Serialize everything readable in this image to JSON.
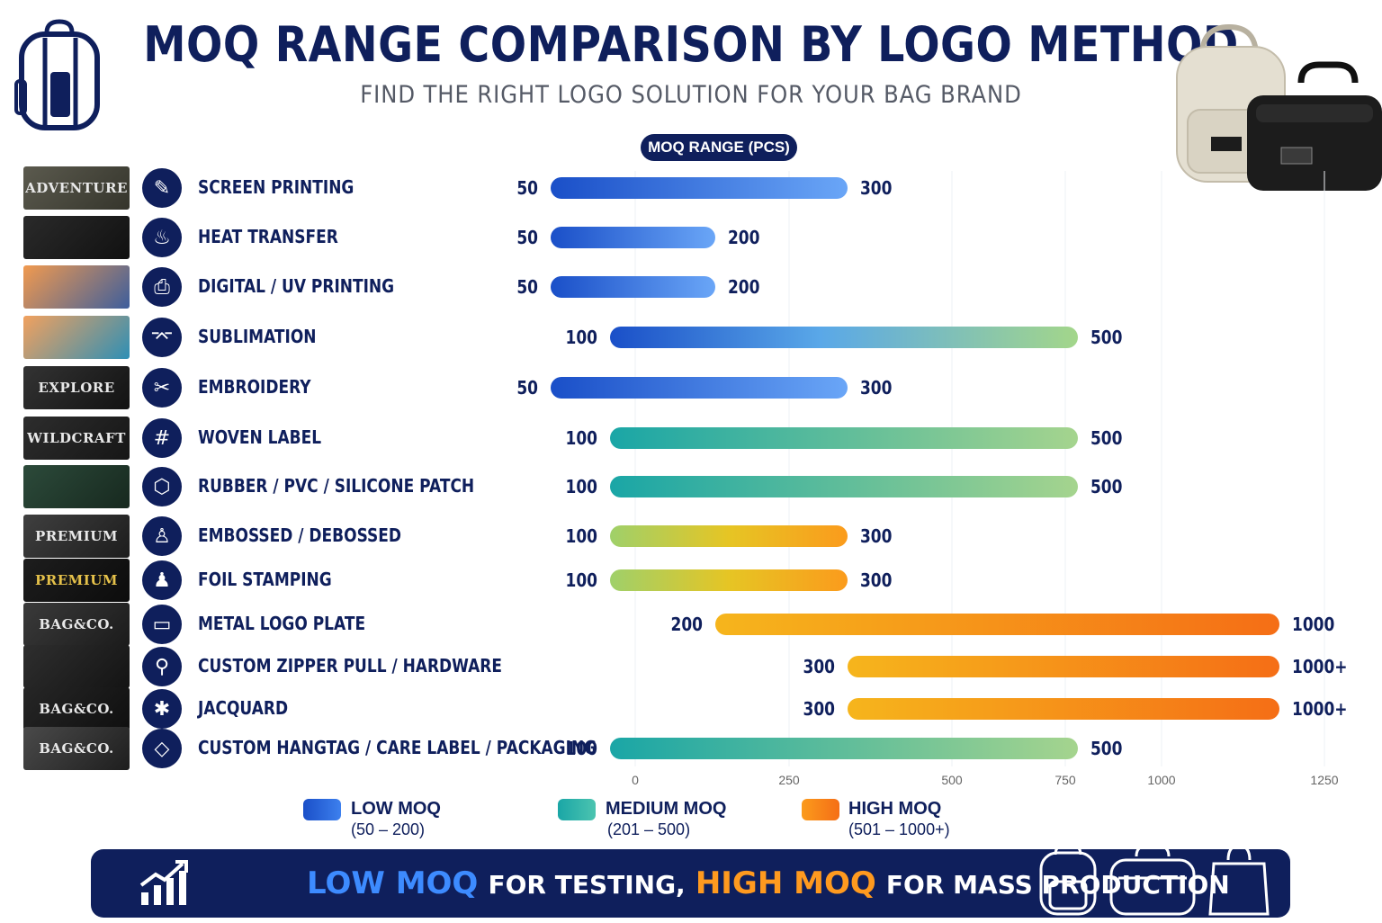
{
  "header": {
    "title": "MOQ RANGE COMPARISON BY LOGO METHOD",
    "subtitle": "FIND THE RIGHT LOGO SOLUTION FOR YOUR BAG BRAND"
  },
  "chart_data": {
    "type": "bar",
    "subtype": "floating-range-horizontal",
    "axis_title": "MOQ RANGE (PCS)",
    "xlim": [
      0,
      1250
    ],
    "x_ticks": [
      0,
      250,
      500,
      750,
      1000,
      1250
    ],
    "grid": true,
    "categories": [
      "SCREEN PRINTING",
      "HEAT TRANSFER",
      "DIGITAL / UV PRINTING",
      "SUBLIMATION",
      "EMBROIDERY",
      "WOVEN LABEL",
      "RUBBER / PVC / SILICONE PATCH",
      "EMBOSSED / DEBOSSED",
      "FOIL STAMPING",
      "METAL LOGO PLATE",
      "CUSTOM ZIPPER PULL / HARDWARE",
      "JACQUARD",
      "CUSTOM HANGTAG / CARE LABEL / PACKAGING"
    ],
    "ranges": [
      {
        "min": 50,
        "max": 300,
        "min_label": "50",
        "max_label": "300",
        "style": "blue"
      },
      {
        "min": 50,
        "max": 200,
        "min_label": "50",
        "max_label": "200",
        "style": "blue"
      },
      {
        "min": 50,
        "max": 200,
        "min_label": "50",
        "max_label": "200",
        "style": "blue"
      },
      {
        "min": 100,
        "max": 500,
        "min_label": "100",
        "max_label": "500",
        "style": "blue-green"
      },
      {
        "min": 50,
        "max": 300,
        "min_label": "50",
        "max_label": "300",
        "style": "blue"
      },
      {
        "min": 100,
        "max": 500,
        "min_label": "100",
        "max_label": "500",
        "style": "teal"
      },
      {
        "min": 100,
        "max": 500,
        "min_label": "100",
        "max_label": "500",
        "style": "teal"
      },
      {
        "min": 100,
        "max": 300,
        "min_label": "100",
        "max_label": "300",
        "style": "green-orange"
      },
      {
        "min": 100,
        "max": 300,
        "min_label": "100",
        "max_label": "300",
        "style": "green-orange"
      },
      {
        "min": 200,
        "max": 1000,
        "min_label": "200",
        "max_label": "1000",
        "style": "orange"
      },
      {
        "min": 300,
        "max": 1000,
        "min_label": "300",
        "max_label": "1000+",
        "style": "orange"
      },
      {
        "min": 300,
        "max": 1000,
        "min_label": "300",
        "max_label": "1000+",
        "style": "orange"
      },
      {
        "min": 100,
        "max": 500,
        "min_label": "100",
        "max_label": "500",
        "style": "teal"
      }
    ],
    "legend": [
      {
        "label": "LOW MOQ",
        "range": "(50 – 200)",
        "color": "#1f5fd6"
      },
      {
        "label": "MEDIUM MOQ",
        "range": "(201 – 500)",
        "color": "#20b2a8"
      },
      {
        "label": "HIGH MOQ",
        "range": "(501 – 1000+)",
        "color": "#f7821b"
      }
    ],
    "legend_position": "bottom"
  },
  "thumbnails": [
    "ADVENTURE",
    "",
    "",
    "",
    "EXPLORE",
    "WILDCRAFT",
    "",
    "PREMIUM",
    "PREMIUM",
    "BAG&CO.",
    "",
    "BAG&CO.",
    "BAG&CO."
  ],
  "icons": [
    "screen-print-icon",
    "iron-icon",
    "printer-icon",
    "sublimation-press-icon",
    "needle-icon",
    "weave-grid-icon",
    "hexagon-patch-icon",
    "stamp-press-icon",
    "foil-stamp-icon",
    "metal-plate-icon",
    "zipper-pull-icon",
    "jacquard-icon",
    "hangtag-icon"
  ],
  "banner": {
    "part1": "LOW MOQ",
    "part2": "FOR TESTING,",
    "part3": "HIGH MOQ",
    "part4": "FOR MASS PRODUCTION"
  },
  "colors": {
    "navy": "#0f1f5c",
    "blue": "#1f5fd6",
    "teal": "#20b2a8",
    "orange": "#f7821b"
  }
}
